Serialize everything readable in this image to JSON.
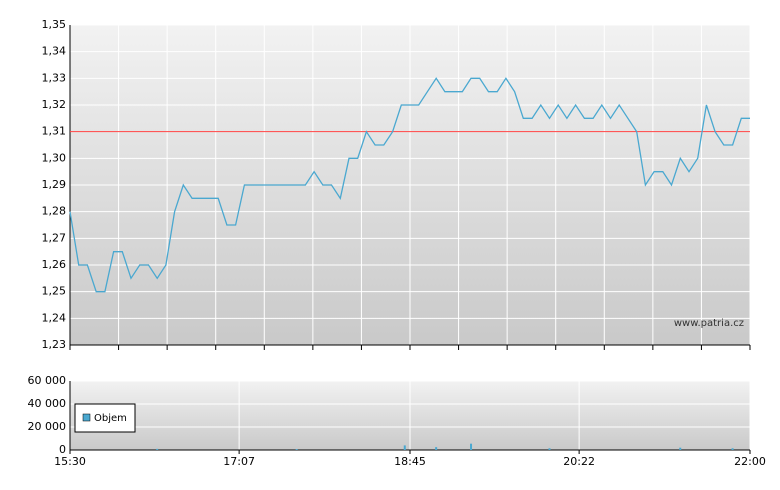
{
  "chart_data": [
    {
      "type": "line",
      "watermark": "www.patria.cz",
      "xlim": [
        "15:30",
        "22:00"
      ],
      "ylim": [
        1.23,
        1.35
      ],
      "yticks": [
        {
          "value": 1.23,
          "label": "1,23"
        },
        {
          "value": 1.24,
          "label": "1,24"
        },
        {
          "value": 1.25,
          "label": "1,25"
        },
        {
          "value": 1.26,
          "label": "1,26"
        },
        {
          "value": 1.27,
          "label": "1,27"
        },
        {
          "value": 1.28,
          "label": "1,28"
        },
        {
          "value": 1.29,
          "label": "1,29"
        },
        {
          "value": 1.3,
          "label": "1,30"
        },
        {
          "value": 1.31,
          "label": "1,31"
        },
        {
          "value": 1.32,
          "label": "1,32"
        },
        {
          "value": 1.33,
          "label": "1,33"
        },
        {
          "value": 1.34,
          "label": "1,34"
        },
        {
          "value": 1.35,
          "label": "1,35"
        }
      ],
      "reference_line": 1.31,
      "reference_color": "#ff4040",
      "grid": true,
      "x": [
        "15:30",
        "15:35",
        "15:40",
        "15:45",
        "15:50",
        "15:55",
        "16:00",
        "16:05",
        "16:10",
        "16:15",
        "16:20",
        "16:25",
        "16:30",
        "16:35",
        "16:40",
        "16:45",
        "16:50",
        "16:55",
        "17:00",
        "17:05",
        "17:10",
        "17:15",
        "17:20",
        "17:25",
        "17:30",
        "17:35",
        "17:40",
        "17:45",
        "17:50",
        "17:55",
        "18:00",
        "18:05",
        "18:10",
        "18:15",
        "18:20",
        "18:25",
        "18:30",
        "18:35",
        "18:40",
        "18:45",
        "18:50",
        "18:55",
        "19:00",
        "19:05",
        "19:10",
        "19:15",
        "19:20",
        "19:25",
        "19:30",
        "19:35",
        "19:40",
        "19:45",
        "19:50",
        "19:55",
        "20:00",
        "20:05",
        "20:10",
        "20:15",
        "20:20",
        "20:25",
        "20:30",
        "20:35",
        "20:40",
        "20:45",
        "20:50",
        "20:55",
        "21:00",
        "21:05",
        "21:10",
        "21:15",
        "21:20",
        "21:25",
        "21:30",
        "21:35",
        "21:40",
        "21:45",
        "21:50",
        "21:55",
        "22:00"
      ],
      "series": [
        {
          "color": "#4aa8d0",
          "values": [
            1.28,
            1.26,
            1.26,
            1.25,
            1.25,
            1.265,
            1.265,
            1.255,
            1.26,
            1.26,
            1.255,
            1.26,
            1.28,
            1.29,
            1.285,
            1.285,
            1.285,
            1.285,
            1.275,
            1.275,
            1.29,
            1.29,
            1.29,
            1.29,
            1.29,
            1.29,
            1.29,
            1.29,
            1.295,
            1.29,
            1.29,
            1.285,
            1.3,
            1.3,
            1.31,
            1.305,
            1.305,
            1.31,
            1.32,
            1.32,
            1.32,
            1.325,
            1.33,
            1.325,
            1.325,
            1.325,
            1.33,
            1.33,
            1.325,
            1.325,
            1.33,
            1.325,
            1.315,
            1.315,
            1.32,
            1.315,
            1.32,
            1.315,
            1.32,
            1.315,
            1.315,
            1.32,
            1.315,
            1.32,
            1.315,
            1.31,
            1.29,
            1.295,
            1.295,
            1.29,
            1.3,
            1.295,
            1.3,
            1.32,
            1.31,
            1.305,
            1.305,
            1.315,
            1.315
          ]
        }
      ]
    },
    {
      "type": "bar",
      "xlim": [
        "15:30",
        "22:00"
      ],
      "xticks": [
        "15:30",
        "17:07",
        "18:45",
        "20:22",
        "22:00"
      ],
      "ylim": [
        0,
        60000
      ],
      "yticks": [
        0,
        {
          "value": 20000,
          "label": "20 000"
        },
        {
          "value": 40000,
          "label": "40 000"
        },
        {
          "value": 60000,
          "label": "60 000"
        }
      ],
      "grid": true,
      "x": [
        "16:20",
        "17:40",
        "18:42",
        "19:00",
        "19:20",
        "20:05",
        "21:20",
        "21:50"
      ],
      "series": [
        {
          "name": "Objem",
          "color": "#4aa8d0",
          "values": [
            1000,
            800,
            4000,
            2500,
            5500,
            1500,
            2000,
            1500
          ]
        }
      ]
    }
  ]
}
